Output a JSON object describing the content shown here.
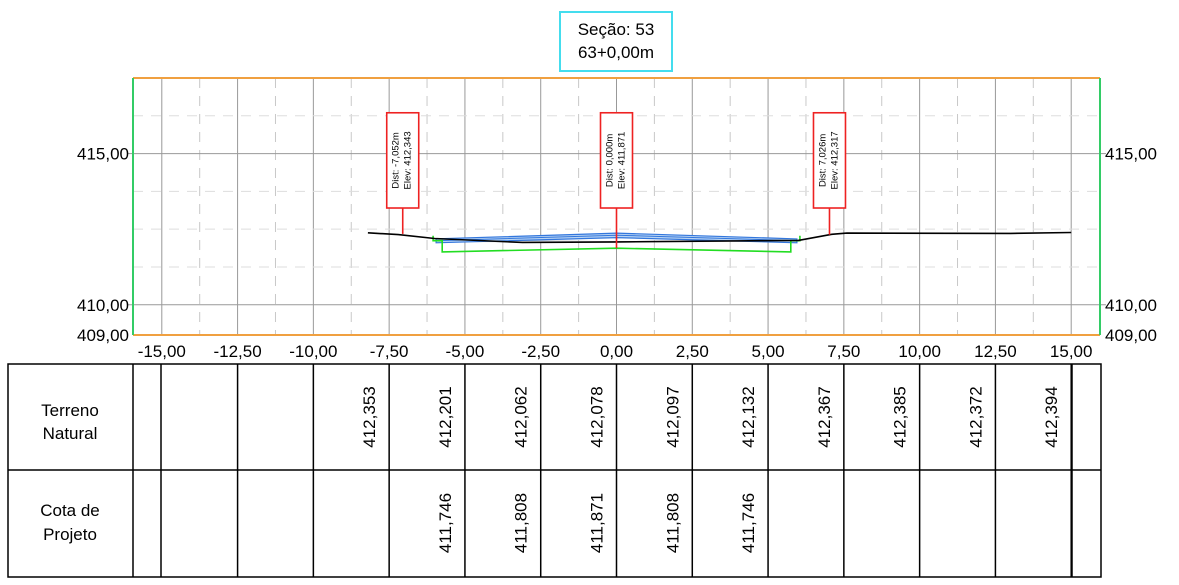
{
  "title": {
    "line1": "Seção: 53",
    "line2": "63+0,00m"
  },
  "chart_data": {
    "type": "line",
    "x_ticks": [
      "-15,00",
      "-12,50",
      "-10,00",
      "-7,50",
      "-5,00",
      "-2,50",
      "0,00",
      "2,50",
      "5,00",
      "7,50",
      "10,00",
      "12,50",
      "15,00"
    ],
    "y_labels": [
      "415,00",
      "410,00",
      "409,00"
    ],
    "xlim": [
      -15.95,
      15.95
    ],
    "ylim": [
      409.0,
      417.5
    ],
    "series": [
      {
        "key": "terrain",
        "x": [
          -8.2,
          -7.2,
          -6.0,
          -3.1,
          0.0,
          6.0,
          7.1,
          7.6,
          13.0,
          15.0
        ],
        "y": [
          412.38,
          412.32,
          412.19,
          412.06,
          412.08,
          412.13,
          412.33,
          412.37,
          412.36,
          412.39
        ]
      },
      {
        "key": "design",
        "x": [
          -5.95,
          0.0,
          5.95
        ],
        "y": [
          412.2,
          412.35,
          412.2
        ]
      }
    ],
    "callouts": [
      {
        "x": -7.052,
        "y": 412.343,
        "dist": "Dist: -7,052m",
        "elev": "Elev: 412,343"
      },
      {
        "x": 0.0,
        "y": 411.871,
        "dist": "Dist: 0,000m",
        "elev": "Elev: 411,871"
      },
      {
        "x": 7.026,
        "y": 412.317,
        "dist": "Dist: 7,026m",
        "elev": "Elev: 412,317"
      }
    ],
    "colors": {
      "frame_top": "#f0a040",
      "frame_side": "#33cc66",
      "grid": "#999999",
      "terrain": "#000000",
      "design": "#3377dd",
      "fill": "#cccccc",
      "subgrade": "#22dd22",
      "callout": "#ee2222",
      "title_border": "#44ddee"
    }
  },
  "table": {
    "rows": [
      {
        "label_line1": "Terreno",
        "label_line2": "Natural",
        "values": [
          "",
          "",
          "",
          "412,353",
          "412,201",
          "412,062",
          "412,078",
          "412,097",
          "412,132",
          "412,367",
          "412,385",
          "412,372",
          "412,394"
        ]
      },
      {
        "label_line1": "Cota de",
        "label_line2": "Projeto",
        "values": [
          "",
          "",
          "",
          "",
          "411,746",
          "411,808",
          "411,871",
          "411,808",
          "411,746",
          "",
          "",
          "",
          ""
        ]
      }
    ]
  }
}
